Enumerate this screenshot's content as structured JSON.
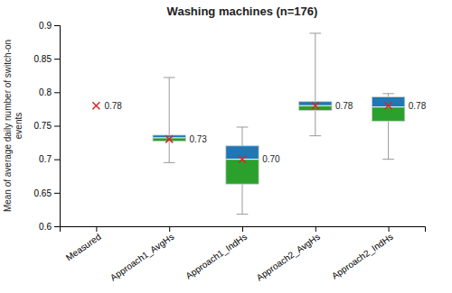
{
  "chart_data": {
    "type": "box",
    "title": "Washing machines (n=176)",
    "ylabel": "Mean of average daily number of switch-on\nevents",
    "categories": [
      "Measured",
      "Approach1_AvgHs",
      "Approach1_IndHs",
      "Approach2_AvgHs",
      "Approach2_IndHs"
    ],
    "boxes": [
      {
        "mean": 0.78,
        "mean_label": "0.78"
      },
      {
        "whislo": 0.695,
        "q1": 0.727,
        "median": 0.732,
        "q3": 0.736,
        "whishi": 0.822,
        "mean": 0.73,
        "mean_label": "0.73"
      },
      {
        "whislo": 0.618,
        "q1": 0.663,
        "median": 0.7,
        "q3": 0.72,
        "whishi": 0.748,
        "mean": 0.7,
        "mean_label": "0.70"
      },
      {
        "whislo": 0.735,
        "q1": 0.773,
        "median": 0.78,
        "q3": 0.786,
        "whishi": 0.888,
        "mean": 0.78,
        "mean_label": "0.78"
      },
      {
        "whislo": 0.7,
        "q1": 0.757,
        "median": 0.778,
        "q3": 0.793,
        "whishi": 0.798,
        "mean": 0.78,
        "mean_label": "0.78"
      }
    ],
    "ylim": [
      0.6,
      0.9
    ],
    "yticks": [
      0.6,
      0.65,
      0.7,
      0.75,
      0.8,
      0.85,
      0.9
    ]
  }
}
